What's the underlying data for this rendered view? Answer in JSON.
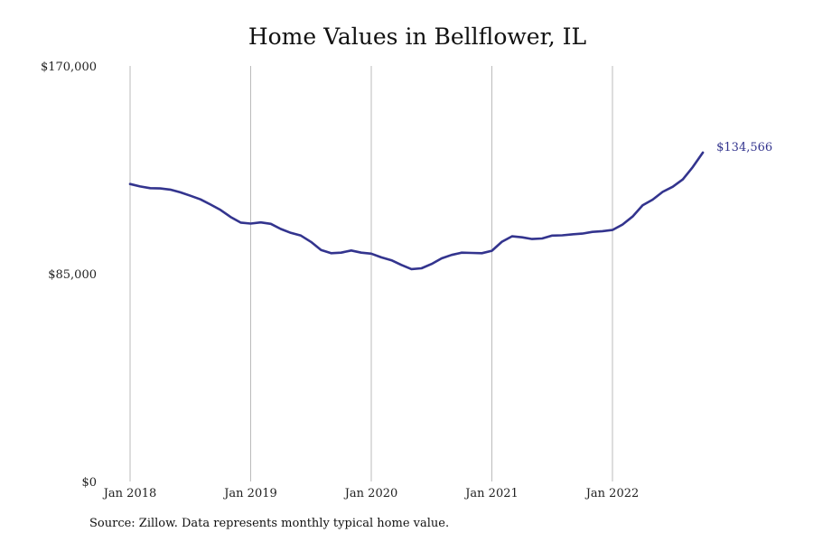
{
  "chart_data": {
    "type": "line",
    "title": "Home Values in Bellflower, IL",
    "source_note": "Source: Zillow. Data represents monthly typical home value.",
    "xlabel": "",
    "ylabel": "",
    "ylim": [
      0,
      170000
    ],
    "y_ticks": [
      0,
      85000,
      170000
    ],
    "y_tick_labels": [
      "$0",
      "$85,000",
      "$170,000"
    ],
    "x_ticks": [
      "2018-01",
      "2019-01",
      "2020-01",
      "2021-01",
      "2022-01"
    ],
    "x_tick_labels": [
      "Jan 2018",
      "Jan 2019",
      "Jan 2020",
      "Jan 2021",
      "Jan 2022"
    ],
    "grid": "vertical lines at x ticks",
    "line_color": "#33348e",
    "grid_color": "#bbbbbb",
    "end_label": "$134,566",
    "series": [
      {
        "x": [
          "2018-01",
          "2018-02",
          "2018-03",
          "2018-04",
          "2018-05",
          "2018-06",
          "2018-07",
          "2018-08",
          "2018-09",
          "2018-10",
          "2018-11",
          "2018-12",
          "2019-01",
          "2019-02",
          "2019-03",
          "2019-04",
          "2019-05",
          "2019-06",
          "2019-07",
          "2019-08",
          "2019-09",
          "2019-10",
          "2019-11",
          "2019-12",
          "2020-01",
          "2020-02",
          "2020-03",
          "2020-04",
          "2020-05",
          "2020-06",
          "2020-07",
          "2020-08",
          "2020-09",
          "2020-10",
          "2020-11",
          "2020-12",
          "2021-01",
          "2021-02",
          "2021-03",
          "2021-04",
          "2021-05",
          "2021-06",
          "2021-07",
          "2021-08",
          "2021-09",
          "2021-10",
          "2021-11",
          "2021-12",
          "2022-01",
          "2022-02",
          "2022-03",
          "2022-04",
          "2022-05",
          "2022-06",
          "2022-07",
          "2022-08",
          "2022-09",
          "2022-10"
        ],
        "values": [
          121700,
          120700,
          120000,
          119900,
          119400,
          118300,
          116900,
          115400,
          113300,
          111100,
          108200,
          105900,
          105500,
          106000,
          105400,
          103300,
          101700,
          100600,
          98000,
          94700,
          93400,
          93600,
          94500,
          93600,
          93200,
          91700,
          90500,
          88600,
          86900,
          87200,
          89000,
          91300,
          92700,
          93600,
          93500,
          93400,
          94400,
          98100,
          100300,
          99900,
          99200,
          99400,
          100600,
          100700,
          101100,
          101400,
          102100,
          102400,
          102900,
          105100,
          108400,
          113000,
          115300,
          118500,
          120600,
          123600,
          128700,
          134566
        ]
      }
    ]
  }
}
